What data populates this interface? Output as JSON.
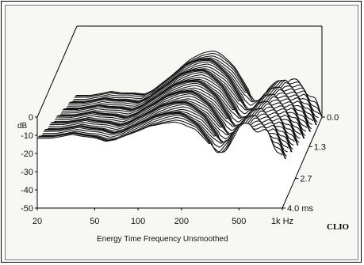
{
  "chart_data": {
    "type": "waterfall-3d",
    "title": "",
    "xlabel": "Energy Time Frequency  Unsmoothed",
    "ylabel": "dB",
    "brand": "CLIO",
    "x_scale": "log",
    "x_range_hz": [
      20,
      1000
    ],
    "x_ticks": [
      {
        "hz": 20,
        "label": "20"
      },
      {
        "hz": 50,
        "label": "50"
      },
      {
        "hz": 100,
        "label": "100"
      },
      {
        "hz": 200,
        "label": "200"
      },
      {
        "hz": 500,
        "label": "500"
      },
      {
        "hz": 1000,
        "label": "1k Hz"
      }
    ],
    "y_range_db": [
      -50,
      0
    ],
    "y_ticks": [
      {
        "db": 0,
        "label": "0"
      },
      {
        "db": -10,
        "label": "-10"
      },
      {
        "db": -20,
        "label": "-20"
      },
      {
        "db": -30,
        "label": "-30"
      },
      {
        "db": -40,
        "label": "-40"
      },
      {
        "db": -50,
        "label": "-50"
      }
    ],
    "time_range_ms": [
      0,
      4.0
    ],
    "time_ticks": [
      {
        "ms": 0.0,
        "label": "0.0"
      },
      {
        "ms": 1.3,
        "label": "1.3"
      },
      {
        "ms": 2.7,
        "label": "2.7"
      },
      {
        "ms": 4.0,
        "label": "4.0  ms"
      }
    ],
    "slice_count": 46,
    "grid": false,
    "legend": "none",
    "front_slice": {
      "freq_hz": [
        20,
        25,
        30,
        35,
        40,
        50,
        60,
        70,
        80,
        100,
        120,
        150,
        180,
        200,
        250,
        300,
        350,
        400,
        450,
        500,
        600,
        700,
        800,
        900,
        1000
      ],
      "level_db": [
        -12,
        -12,
        -11,
        -10,
        -11,
        -12,
        -14,
        -13,
        -11,
        -8,
        -5,
        -3,
        -2,
        -3,
        -7,
        -14,
        -20,
        -17,
        -11,
        -7,
        -4,
        -7,
        -10,
        -16,
        -23
      ]
    }
  }
}
